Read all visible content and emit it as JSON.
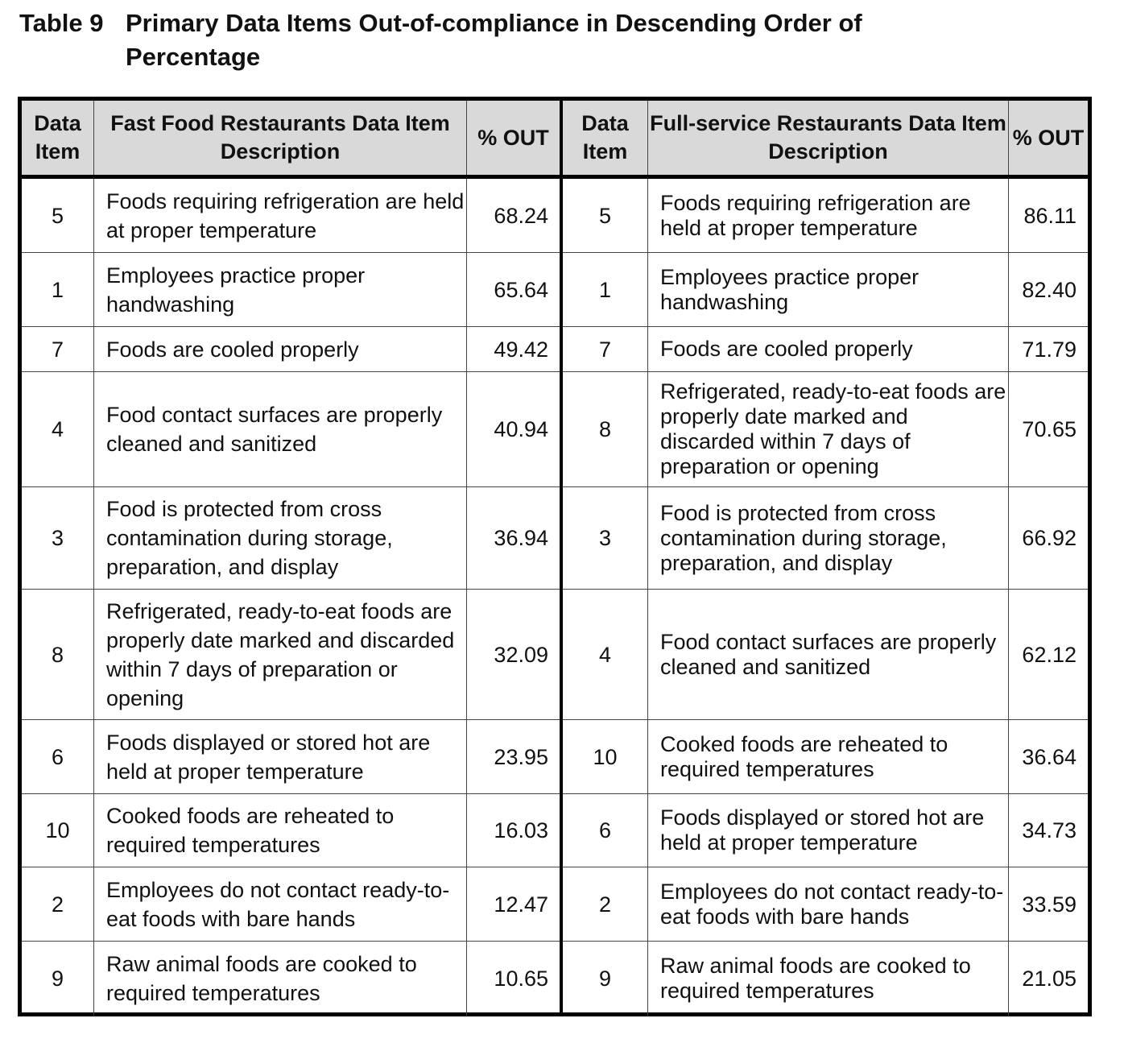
{
  "caption": {
    "number": "Table 9",
    "title": "Primary Data Items Out-of-compliance in Descending Order of Percentage"
  },
  "headers": {
    "data_item": "Data Item",
    "fast_food_description": "Fast Food Restaurants Data Item Description",
    "pct_out": "% OUT",
    "full_service_description": "Full-service Restaurants Data Item Description"
  },
  "fast_food": [
    {
      "item": "5",
      "description": "Foods requiring refrigeration are held at proper temperature",
      "pct": "68.24"
    },
    {
      "item": "1",
      "description": "Employees practice proper handwashing",
      "pct": "65.64"
    },
    {
      "item": "7",
      "description": "Foods are cooled properly",
      "pct": "49.42"
    },
    {
      "item": "4",
      "description": "Food contact surfaces are properly cleaned and sanitized",
      "pct": "40.94"
    },
    {
      "item": "3",
      "description": "Food is protected from cross contamination during storage, preparation, and display",
      "pct": "36.94"
    },
    {
      "item": "8",
      "description": "Refrigerated, ready-to-eat foods are properly date marked and discarded within 7 days of preparation or opening",
      "pct": "32.09"
    },
    {
      "item": "6",
      "description": "Foods displayed or stored hot are held at proper temperature",
      "pct": "23.95"
    },
    {
      "item": "10",
      "description": "Cooked foods are reheated to required temperatures",
      "pct": "16.03"
    },
    {
      "item": "2",
      "description": "Employees do not contact ready-to-eat foods with bare hands",
      "pct": "12.47"
    },
    {
      "item": "9",
      "description": "Raw animal foods are cooked to required temperatures",
      "pct": "10.65"
    }
  ],
  "full_service": [
    {
      "item": "5",
      "description": "Foods requiring refrigeration are held at proper temperature",
      "pct": "86.11"
    },
    {
      "item": "1",
      "description": "Employees practice proper handwashing",
      "pct": "82.40"
    },
    {
      "item": "7",
      "description": "Foods are cooled properly",
      "pct": "71.79"
    },
    {
      "item": "8",
      "description": "Refrigerated, ready-to-eat foods are properly date marked and discarded within 7 days of preparation or opening",
      "pct": "70.65"
    },
    {
      "item": "3",
      "description": "Food is protected from cross contamination during storage, preparation, and display",
      "pct": "66.92"
    },
    {
      "item": "4",
      "description": "Food contact surfaces are properly cleaned and sanitized",
      "pct": "62.12"
    },
    {
      "item": "10",
      "description": "Cooked foods are reheated to required temperatures",
      "pct": "36.64"
    },
    {
      "item": "6",
      "description": "Foods displayed or stored hot are held at proper temperature",
      "pct": "34.73"
    },
    {
      "item": "2",
      "description": "Employees do not contact ready-to-eat foods with bare hands",
      "pct": "33.59"
    },
    {
      "item": "9",
      "description": "Raw animal foods are cooked to required temperatures",
      "pct": "21.05"
    }
  ]
}
